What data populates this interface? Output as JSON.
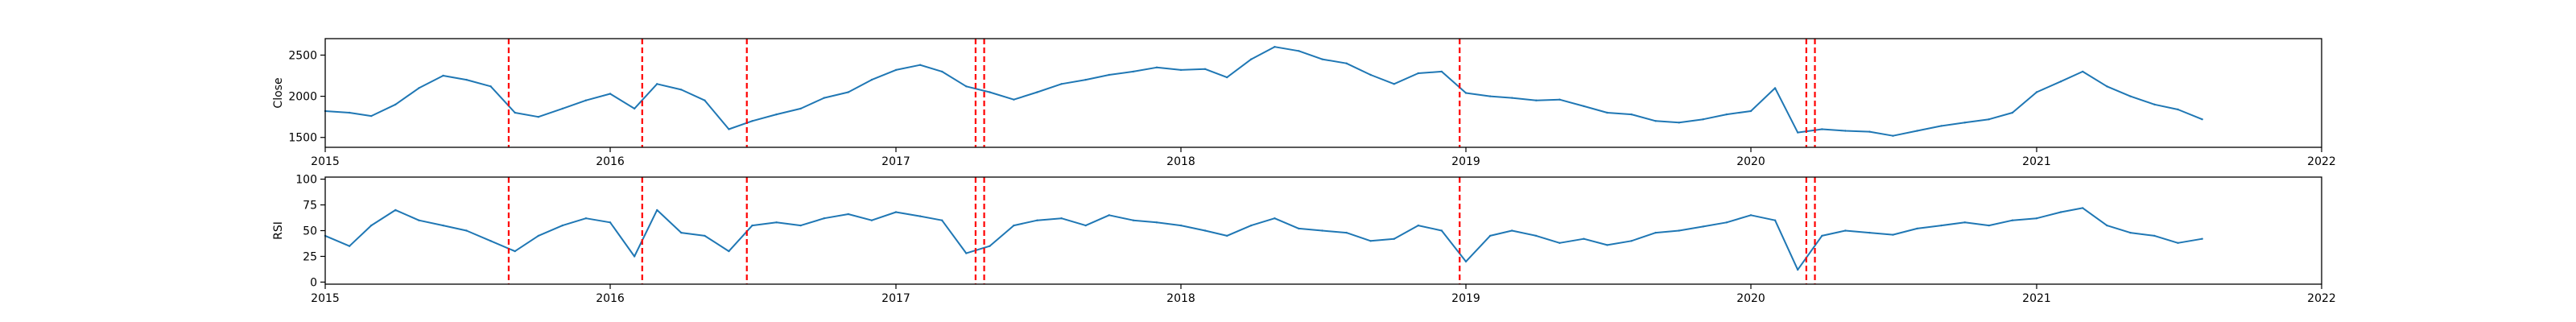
{
  "chart_data": [
    {
      "type": "line",
      "ylabel": "Close",
      "xlabel": "",
      "title": "",
      "ylim": [
        1380,
        2700
      ],
      "yticks": [
        1500,
        2000,
        2500
      ],
      "xlim": [
        "2015-01-01",
        "2022-01-01"
      ],
      "xticks": [
        "2015",
        "2016",
        "2017",
        "2018",
        "2019",
        "2020",
        "2021",
        "2022"
      ],
      "grid": false,
      "line_color": "#1f77b4",
      "series": [
        {
          "x": [
            "2015-01-01",
            "2015-02-01",
            "2015-03-01",
            "2015-04-01",
            "2015-05-01",
            "2015-06-01",
            "2015-07-01",
            "2015-08-01",
            "2015-09-01",
            "2015-10-01",
            "2015-11-01",
            "2015-12-01",
            "2016-01-01",
            "2016-02-01",
            "2016-03-01",
            "2016-04-01",
            "2016-05-01",
            "2016-06-01",
            "2016-07-01",
            "2016-08-01",
            "2016-09-01",
            "2016-10-01",
            "2016-11-01",
            "2016-12-01",
            "2017-01-01",
            "2017-02-01",
            "2017-03-01",
            "2017-04-01",
            "2017-05-01",
            "2017-06-01",
            "2017-07-01",
            "2017-08-01",
            "2017-09-01",
            "2017-10-01",
            "2017-11-01",
            "2017-12-01",
            "2018-01-01",
            "2018-02-01",
            "2018-03-01",
            "2018-04-01",
            "2018-05-01",
            "2018-06-01",
            "2018-07-01",
            "2018-08-01",
            "2018-09-01",
            "2018-10-01",
            "2018-11-01",
            "2018-12-01",
            "2019-01-01",
            "2019-02-01",
            "2019-03-01",
            "2019-04-01",
            "2019-05-01",
            "2019-06-01",
            "2019-07-01",
            "2019-08-01",
            "2019-09-01",
            "2019-10-01",
            "2019-11-01",
            "2019-12-01",
            "2020-01-01",
            "2020-02-01",
            "2020-03-01",
            "2020-04-01",
            "2020-05-01",
            "2020-06-01",
            "2020-07-01",
            "2020-08-01",
            "2020-09-01",
            "2020-10-01",
            "2020-11-01",
            "2020-12-01",
            "2021-01-01",
            "2021-02-01",
            "2021-03-01",
            "2021-04-01",
            "2021-05-01",
            "2021-06-01",
            "2021-07-01",
            "2021-08-01"
          ],
          "values": [
            1820,
            1800,
            1760,
            1900,
            2100,
            2250,
            2200,
            2120,
            1800,
            1750,
            1850,
            1950,
            2030,
            1850,
            2150,
            2080,
            1950,
            1600,
            1700,
            1780,
            1850,
            1980,
            2050,
            2200,
            2320,
            2380,
            2300,
            2120,
            2050,
            1960,
            2050,
            2150,
            2200,
            2260,
            2300,
            2350,
            2320,
            2330,
            2230,
            2450,
            2600,
            2550,
            2450,
            2400,
            2260,
            2150,
            2280,
            2300,
            2040,
            2000,
            1980,
            1950,
            1960,
            1880,
            1800,
            1780,
            1700,
            1680,
            1720,
            1780,
            1820,
            2100,
            1560,
            1600,
            1580,
            1570,
            1520,
            1580,
            1640,
            1680,
            1720,
            1800,
            2050,
            2180,
            2300,
            2120,
            2000,
            1900,
            1840,
            1720
          ]
        }
      ]
    },
    {
      "type": "line",
      "ylabel": "RSI",
      "xlabel": "",
      "title": "",
      "ylim": [
        -2,
        102
      ],
      "yticks": [
        0,
        25,
        50,
        75,
        100
      ],
      "xlim": [
        "2015-01-01",
        "2022-01-01"
      ],
      "xticks": [
        "2015",
        "2016",
        "2017",
        "2018",
        "2019",
        "2020",
        "2021",
        "2022"
      ],
      "grid": false,
      "line_color": "#1f77b4",
      "series": [
        {
          "x": [
            "2015-01-01",
            "2015-02-01",
            "2015-03-01",
            "2015-04-01",
            "2015-05-01",
            "2015-06-01",
            "2015-07-01",
            "2015-08-01",
            "2015-09-01",
            "2015-10-01",
            "2015-11-01",
            "2015-12-01",
            "2016-01-01",
            "2016-02-01",
            "2016-03-01",
            "2016-04-01",
            "2016-05-01",
            "2016-06-01",
            "2016-07-01",
            "2016-08-01",
            "2016-09-01",
            "2016-10-01",
            "2016-11-01",
            "2016-12-01",
            "2017-01-01",
            "2017-02-01",
            "2017-03-01",
            "2017-04-01",
            "2017-05-01",
            "2017-06-01",
            "2017-07-01",
            "2017-08-01",
            "2017-09-01",
            "2017-10-01",
            "2017-11-01",
            "2017-12-01",
            "2018-01-01",
            "2018-02-01",
            "2018-03-01",
            "2018-04-01",
            "2018-05-01",
            "2018-06-01",
            "2018-07-01",
            "2018-08-01",
            "2018-09-01",
            "2018-10-01",
            "2018-11-01",
            "2018-12-01",
            "2019-01-01",
            "2019-02-01",
            "2019-03-01",
            "2019-04-01",
            "2019-05-01",
            "2019-06-01",
            "2019-07-01",
            "2019-08-01",
            "2019-09-01",
            "2019-10-01",
            "2019-11-01",
            "2019-12-01",
            "2020-01-01",
            "2020-02-01",
            "2020-03-01",
            "2020-04-01",
            "2020-05-01",
            "2020-06-01",
            "2020-07-01",
            "2020-08-01",
            "2020-09-01",
            "2020-10-01",
            "2020-11-01",
            "2020-12-01",
            "2021-01-01",
            "2021-02-01",
            "2021-03-01",
            "2021-04-01",
            "2021-05-01",
            "2021-06-01",
            "2021-07-01",
            "2021-08-01"
          ],
          "values": [
            45,
            35,
            55,
            70,
            60,
            55,
            50,
            40,
            30,
            45,
            55,
            62,
            58,
            25,
            70,
            48,
            45,
            30,
            55,
            58,
            55,
            62,
            66,
            60,
            68,
            64,
            60,
            28,
            35,
            55,
            60,
            62,
            55,
            65,
            60,
            58,
            55,
            50,
            45,
            55,
            62,
            52,
            50,
            48,
            40,
            42,
            55,
            50,
            20,
            45,
            50,
            45,
            38,
            42,
            36,
            40,
            48,
            50,
            54,
            58,
            65,
            60,
            12,
            45,
            50,
            48,
            46,
            52,
            55,
            58,
            55,
            60,
            62,
            68,
            72,
            55,
            48,
            45,
            38,
            42
          ]
        }
      ]
    }
  ],
  "event_lines": {
    "color": "#ff0000",
    "dates": [
      "2015-08-24",
      "2016-02-11",
      "2016-06-24",
      "2017-04-13",
      "2017-04-24",
      "2018-12-24",
      "2020-03-12",
      "2020-03-23"
    ]
  }
}
